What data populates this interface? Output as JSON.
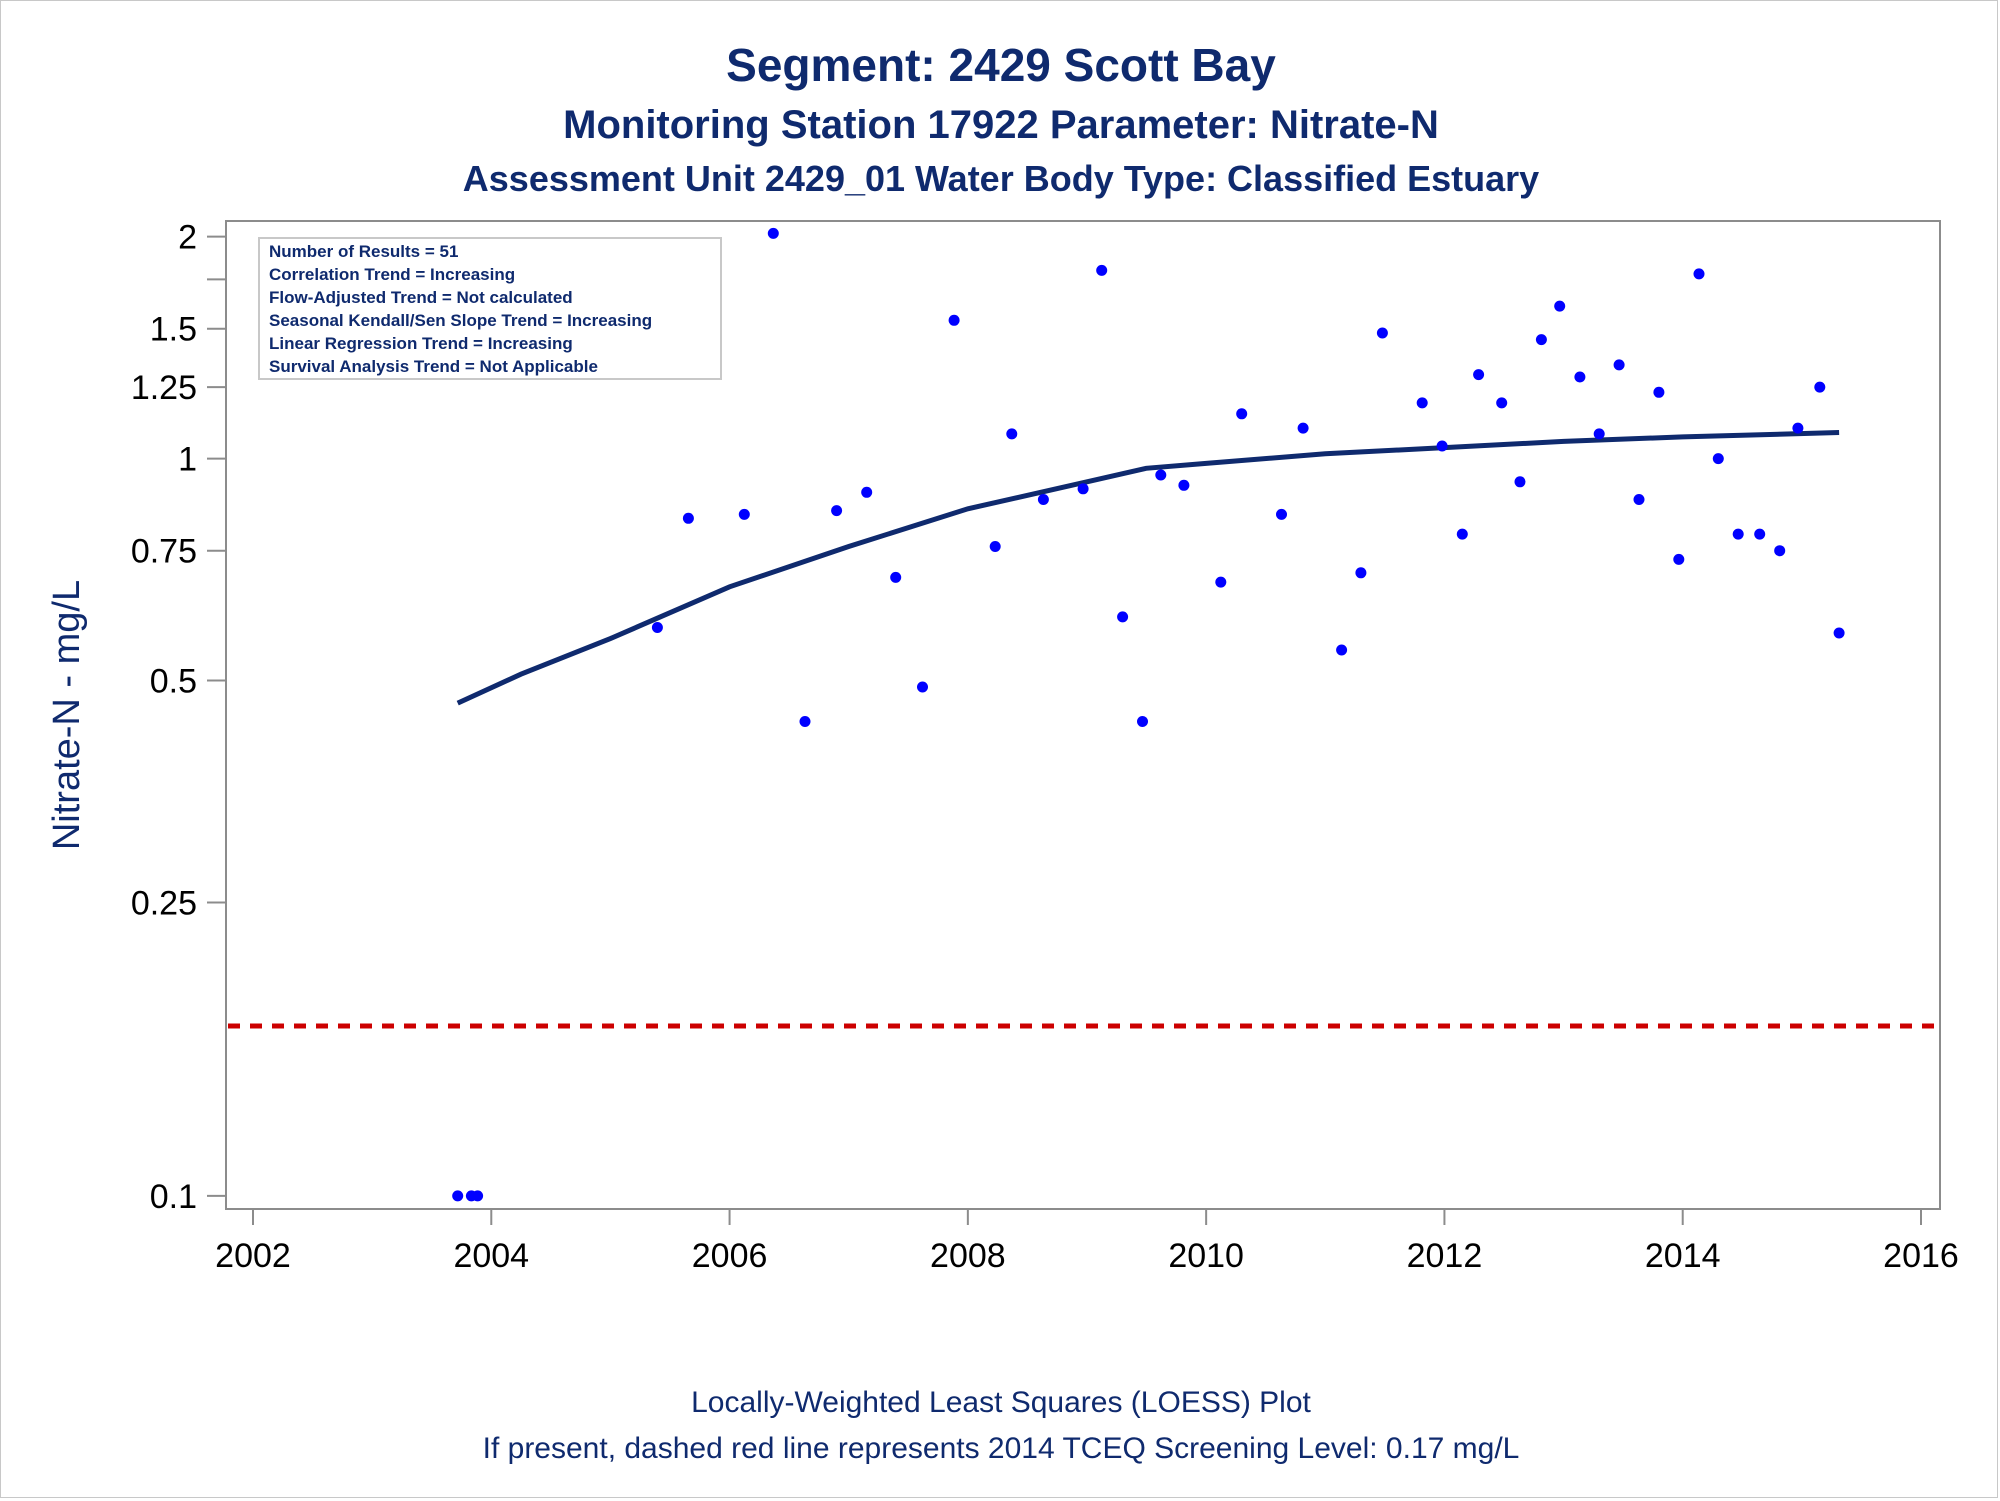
{
  "chart_data": {
    "type": "scatter",
    "title": "Segment: 2429  Scott Bay",
    "subtitle_1": "Monitoring Station 17922 Parameter: Nitrate-N",
    "subtitle_2": "Assessment Unit 2429_01   Water Body Type: Classified Estuary",
    "ylabel": "Nitrate-N - mg/L",
    "xlabel": "",
    "x_scale": "date",
    "y_scale": "log",
    "xlim": [
      2001.95,
      2016.05
    ],
    "ylim": [
      0.096,
      2.1
    ],
    "x_ticks": [
      "2002",
      "2004",
      "2006",
      "2008",
      "2010",
      "2012",
      "2014",
      "2016"
    ],
    "y_ticks": [
      "0.1",
      "0.25",
      "0.5",
      "0.75",
      "1",
      "1.25",
      "1.5",
      "2"
    ],
    "grid": false,
    "legend_lines": [
      "Number of Results = 51",
      "Correlation Trend = Increasing",
      "Flow-Adjusted Trend = Not calculated",
      "Seasonal Kendall/Sen Slope Trend = Increasing",
      "Linear Regression Trend = Increasing",
      "Survival Analysis Trend = Not Applicable"
    ],
    "legend_position": "top-left",
    "footnote_1": "Locally-Weighted Least Squares (LOESS) Plot",
    "footnote_2": "If present, dashed red line represents 2014 TCEQ Screening Level: 0.17 mg/L",
    "screening_level": 0.17,
    "colors": {
      "points": "#0000ff",
      "loess": "#0f2a6e",
      "screening": "#cc0000",
      "text": "#0f2a6e"
    },
    "points": [
      {
        "x": "2003-09-20",
        "y": 0.1
      },
      {
        "x": "2003-11-01",
        "y": 0.1
      },
      {
        "x": "2003-11-20",
        "y": 0.1
      },
      {
        "x": "2005-05-25",
        "y": 0.59
      },
      {
        "x": "2005-08-28",
        "y": 0.83
      },
      {
        "x": "2006-02-15",
        "y": 0.84
      },
      {
        "x": "2006-05-15",
        "y": 2.02
      },
      {
        "x": "2006-08-20",
        "y": 0.44
      },
      {
        "x": "2006-11-25",
        "y": 0.85
      },
      {
        "x": "2007-02-25",
        "y": 0.9
      },
      {
        "x": "2007-05-25",
        "y": 0.69
      },
      {
        "x": "2007-08-15",
        "y": 0.49
      },
      {
        "x": "2007-11-20",
        "y": 1.54
      },
      {
        "x": "2008-03-25",
        "y": 0.76
      },
      {
        "x": "2008-05-15",
        "y": 1.08
      },
      {
        "x": "2008-08-20",
        "y": 0.88
      },
      {
        "x": "2008-12-20",
        "y": 0.91
      },
      {
        "x": "2009-02-15",
        "y": 1.8
      },
      {
        "x": "2009-04-20",
        "y": 0.61
      },
      {
        "x": "2009-06-20",
        "y": 0.44
      },
      {
        "x": "2009-08-15",
        "y": 0.95
      },
      {
        "x": "2009-10-25",
        "y": 0.92
      },
      {
        "x": "2010-02-15",
        "y": 0.68
      },
      {
        "x": "2010-04-20",
        "y": 1.15
      },
      {
        "x": "2010-08-20",
        "y": 0.84
      },
      {
        "x": "2010-10-25",
        "y": 1.1
      },
      {
        "x": "2011-02-20",
        "y": 0.55
      },
      {
        "x": "2011-04-20",
        "y": 0.7
      },
      {
        "x": "2011-06-25",
        "y": 1.48
      },
      {
        "x": "2011-10-25",
        "y": 1.19
      },
      {
        "x": "2011-12-25",
        "y": 1.04
      },
      {
        "x": "2012-02-25",
        "y": 0.79
      },
      {
        "x": "2012-04-15",
        "y": 1.3
      },
      {
        "x": "2012-06-25",
        "y": 1.19
      },
      {
        "x": "2012-08-20",
        "y": 0.93
      },
      {
        "x": "2012-10-25",
        "y": 1.45
      },
      {
        "x": "2012-12-20",
        "y": 1.61
      },
      {
        "x": "2013-02-20",
        "y": 1.29
      },
      {
        "x": "2013-04-20",
        "y": 1.08
      },
      {
        "x": "2013-06-20",
        "y": 1.34
      },
      {
        "x": "2013-08-20",
        "y": 0.88
      },
      {
        "x": "2013-10-20",
        "y": 1.23
      },
      {
        "x": "2013-12-20",
        "y": 0.73
      },
      {
        "x": "2014-02-20",
        "y": 1.78
      },
      {
        "x": "2014-04-20",
        "y": 1.0
      },
      {
        "x": "2014-06-20",
        "y": 0.79
      },
      {
        "x": "2014-08-25",
        "y": 0.79
      },
      {
        "x": "2014-10-25",
        "y": 0.75
      },
      {
        "x": "2014-12-20",
        "y": 1.1
      },
      {
        "x": "2015-02-25",
        "y": 1.25
      },
      {
        "x": "2015-04-25",
        "y": 0.58
      }
    ],
    "loess": [
      {
        "x": "2003-09-20",
        "y": 0.466
      },
      {
        "x": "2004-04-01",
        "y": 0.51
      },
      {
        "x": "2005-01-01",
        "y": 0.57
      },
      {
        "x": "2006-01-01",
        "y": 0.67
      },
      {
        "x": "2007-01-01",
        "y": 0.76
      },
      {
        "x": "2008-01-01",
        "y": 0.855
      },
      {
        "x": "2009-01-01",
        "y": 0.93
      },
      {
        "x": "2009-07-01",
        "y": 0.97
      },
      {
        "x": "2010-01-01",
        "y": 0.985
      },
      {
        "x": "2011-01-01",
        "y": 1.015
      },
      {
        "x": "2012-01-01",
        "y": 1.035
      },
      {
        "x": "2013-01-01",
        "y": 1.055
      },
      {
        "x": "2014-01-01",
        "y": 1.07
      },
      {
        "x": "2015-04-25",
        "y": 1.085
      }
    ]
  }
}
